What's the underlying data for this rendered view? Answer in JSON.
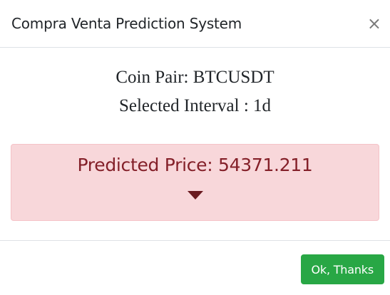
{
  "modal": {
    "title": "Compra Venta Prediction System",
    "close_symbol": "×",
    "close_icon": "close-icon"
  },
  "body": {
    "coin_pair": "Coin Pair: BTCUSDT",
    "interval": "Selected Interval : 1d"
  },
  "alert": {
    "text": "Predicted Price: 54371.211",
    "indicator_icon": "caret-down-icon",
    "background": "#f8d7da",
    "text_color": "#842029"
  },
  "footer": {
    "ok_label": "Ok, Thanks",
    "ok_color": "#28a745"
  }
}
